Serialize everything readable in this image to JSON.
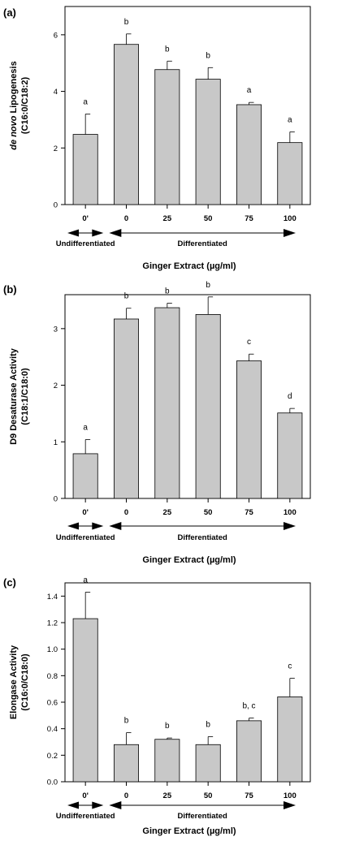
{
  "chart_data": [
    {
      "type": "bar",
      "panel_label": "(a)",
      "ylabel_italic": "de novo",
      "ylabel_rest": " Lipogenesis",
      "ylabel_line2": "(C16:0/C18:2)",
      "xlabel": "Ginger Extract (µg/ml)",
      "categories": [
        "0'",
        "0",
        "25",
        "50",
        "75",
        "100"
      ],
      "values": [
        2.48,
        5.66,
        4.77,
        4.43,
        3.53,
        2.19
      ],
      "errors": [
        0.72,
        0.37,
        0.3,
        0.41,
        0.08,
        0.38
      ],
      "letters": [
        "a",
        "b",
        "b",
        "b",
        "a",
        "a"
      ],
      "ylim": [
        0,
        7
      ],
      "yticks": [
        "0",
        "2",
        "4",
        "6"
      ],
      "ytick_values": [
        0,
        2,
        4,
        6
      ],
      "group_labels": [
        "Undifferentiated",
        "Differentiated"
      ]
    },
    {
      "type": "bar",
      "panel_label": "(b)",
      "ylabel_italic": "",
      "ylabel_rest": "D9 Desaturase Activity",
      "ylabel_line2": "(C18:1/C18:0)",
      "xlabel": "Ginger Extract (µg/ml)",
      "categories": [
        "0'",
        "0",
        "25",
        "50",
        "75",
        "100"
      ],
      "values": [
        0.79,
        3.17,
        3.37,
        3.25,
        2.43,
        1.51
      ],
      "errors": [
        0.25,
        0.19,
        0.08,
        0.31,
        0.12,
        0.08
      ],
      "letters": [
        "a",
        "b",
        "b",
        "b",
        "c",
        "d"
      ],
      "ylim": [
        0,
        3.6
      ],
      "yticks": [
        "0",
        "1",
        "2",
        "3"
      ],
      "ytick_values": [
        0,
        1,
        2,
        3
      ],
      "group_labels": [
        "Undifferentiated",
        "Differentiated"
      ]
    },
    {
      "type": "bar",
      "panel_label": "(c)",
      "ylabel_italic": "",
      "ylabel_rest": "Elongase Activity",
      "ylabel_line2": "(C16:0/C18:0)",
      "xlabel": "Ginger Extract (µg/ml)",
      "categories": [
        "0'",
        "0",
        "25",
        "50",
        "75",
        "100"
      ],
      "values": [
        1.23,
        0.28,
        0.32,
        0.28,
        0.46,
        0.64
      ],
      "errors": [
        0.2,
        0.09,
        0.01,
        0.06,
        0.02,
        0.14
      ],
      "letters": [
        "a",
        "b",
        "b",
        "b",
        "b, c",
        "c"
      ],
      "ylim": [
        0,
        1.5
      ],
      "yticks": [
        "0.0",
        "0.2",
        "0.4",
        "0.6",
        "0.8",
        "1.0",
        "1.2",
        "1.4"
      ],
      "ytick_values": [
        0,
        0.2,
        0.4,
        0.6,
        0.8,
        1.0,
        1.2,
        1.4
      ],
      "group_labels": [
        "Undifferentiated",
        "Differentiated"
      ]
    }
  ],
  "colors": {
    "bar_fill": "#c8c8c8",
    "stroke": "#000000"
  }
}
